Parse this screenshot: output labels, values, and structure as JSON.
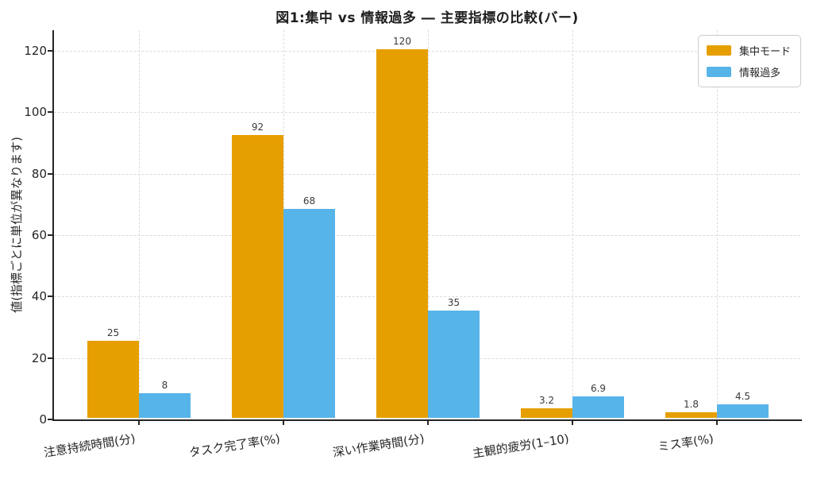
{
  "title": "図1:集中 vs 情報過多 ― 主要指標の比較(バー)",
  "chart_data": {
    "type": "bar",
    "title": "図1:集中 vs 情報過多 ― 主要指標の比較(バー)",
    "xlabel": "",
    "ylabel": "値(指標ごとに単位が異なります)",
    "categories": [
      "注意持続時間(分)",
      "タスク完了率(%)",
      "深い作業時間(分)",
      "主観的疲労(1–10)",
      "ミス率(%)"
    ],
    "series": [
      {
        "name": "集中モード",
        "color": "#E69F00",
        "values": [
          25,
          92,
          120,
          3.2,
          1.8
        ]
      },
      {
        "name": "情報過多",
        "color": "#56B4E9",
        "values": [
          8,
          68,
          35,
          6.9,
          4.5
        ]
      }
    ],
    "ylim": [
      0,
      126.7
    ],
    "yticks": [
      0,
      20,
      40,
      60,
      80,
      100,
      120
    ],
    "grid": true,
    "grid_style": "dashed",
    "legend_position": "upper right",
    "colors": {
      "focus_mode": "#E69F00",
      "info_overload": "#56B4E9",
      "axis": "#262626",
      "grid": "#dcdcdc",
      "value_label": "#3a3a3a"
    }
  }
}
